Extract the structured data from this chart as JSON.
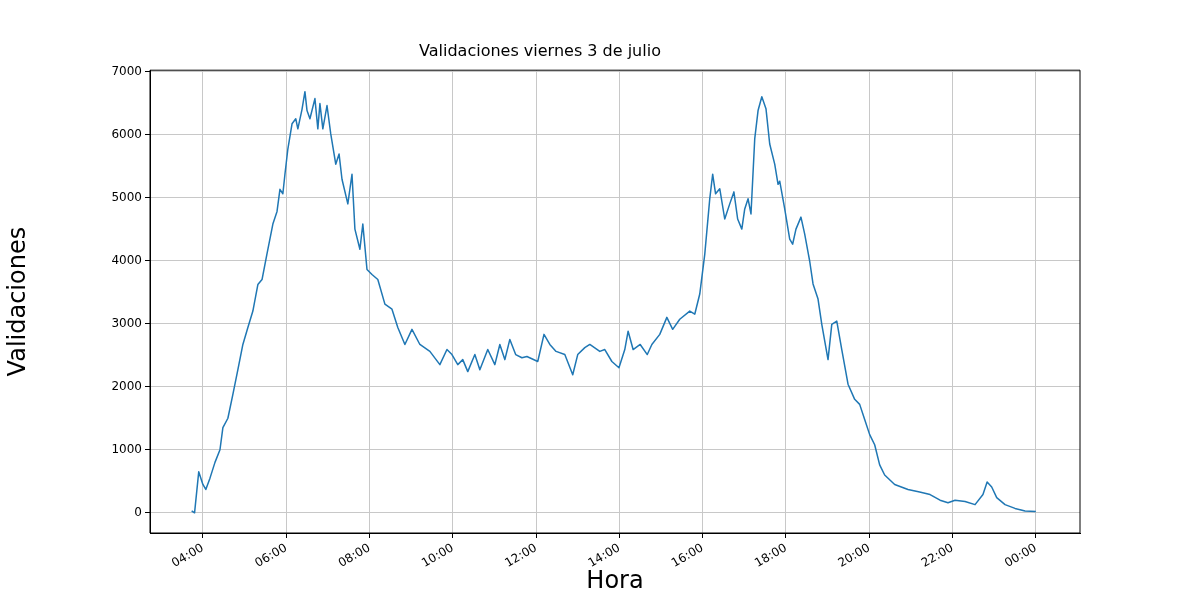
{
  "chart_data": {
    "type": "line",
    "title": "Validaciones viernes 3 de julio",
    "xlabel": "Hora",
    "ylabel": "Validaciones",
    "x": [
      3.73,
      3.8,
      3.9,
      4.0,
      4.07,
      4.17,
      4.29,
      4.41,
      4.48,
      4.6,
      4.72,
      4.84,
      4.96,
      5.08,
      5.2,
      5.32,
      5.42,
      5.56,
      5.68,
      5.78,
      5.85,
      5.92,
      5.97,
      6.04,
      6.14,
      6.23,
      6.28,
      6.38,
      6.45,
      6.5,
      6.57,
      6.69,
      6.76,
      6.81,
      6.88,
      6.98,
      7.07,
      7.19,
      7.27,
      7.34,
      7.48,
      7.58,
      7.65,
      7.77,
      7.84,
      7.94,
      8.06,
      8.2,
      8.37,
      8.54,
      8.68,
      8.85,
      9.02,
      9.21,
      9.45,
      9.69,
      9.86,
      9.98,
      10.12,
      10.24,
      10.36,
      10.53,
      10.65,
      10.84,
      11.01,
      11.13,
      11.25,
      11.37,
      11.51,
      11.66,
      11.78,
      12.04,
      12.19,
      12.33,
      12.48,
      12.69,
      12.88,
      13.0,
      13.17,
      13.29,
      13.53,
      13.65,
      13.82,
      13.99,
      14.13,
      14.21,
      14.33,
      14.5,
      14.67,
      14.78,
      14.97,
      15.14,
      15.28,
      15.45,
      15.69,
      15.81,
      15.93,
      16.05,
      16.17,
      16.24,
      16.31,
      16.41,
      16.53,
      16.65,
      16.75,
      16.84,
      16.94,
      17.01,
      17.09,
      17.16,
      17.25,
      17.33,
      17.42,
      17.52,
      17.61,
      17.73,
      17.81,
      17.85,
      17.97,
      18.09,
      18.16,
      18.24,
      18.36,
      18.45,
      18.57,
      18.65,
      18.77,
      18.86,
      19.01,
      19.1,
      19.22,
      19.34,
      19.49,
      19.65,
      19.77,
      19.89,
      20.01,
      20.13,
      20.25,
      20.37,
      20.61,
      20.93,
      21.21,
      21.46,
      21.7,
      21.89,
      22.06,
      22.3,
      22.54,
      22.73,
      22.83,
      22.94,
      23.06,
      23.26,
      23.5,
      23.74,
      24.0
    ],
    "series": [
      {
        "color": "#1f77b4",
        "values": [
          30,
          0,
          650,
          450,
          370,
          550,
          800,
          1000,
          1350,
          1500,
          1880,
          2270,
          2670,
          2940,
          3200,
          3620,
          3700,
          4180,
          4580,
          4780,
          5130,
          5060,
          5370,
          5770,
          6170,
          6250,
          6090,
          6400,
          6680,
          6380,
          6250,
          6570,
          6090,
          6490,
          6090,
          6460,
          6010,
          5530,
          5690,
          5290,
          4900,
          5370,
          4500,
          4180,
          4580,
          3860,
          3780,
          3700,
          3310,
          3230,
          2940,
          2670,
          2910,
          2670,
          2560,
          2350,
          2590,
          2510,
          2350,
          2430,
          2240,
          2510,
          2270,
          2590,
          2350,
          2670,
          2430,
          2750,
          2510,
          2460,
          2480,
          2400,
          2830,
          2670,
          2560,
          2510,
          2190,
          2510,
          2620,
          2670,
          2560,
          2590,
          2400,
          2300,
          2590,
          2880,
          2590,
          2670,
          2510,
          2670,
          2830,
          3100,
          2910,
          3070,
          3200,
          3150,
          3470,
          4100,
          4980,
          5370,
          5060,
          5140,
          4660,
          4900,
          5090,
          4660,
          4500,
          4820,
          4980,
          4740,
          5930,
          6380,
          6600,
          6410,
          5850,
          5530,
          5210,
          5260,
          4820,
          4340,
          4260,
          4500,
          4690,
          4420,
          3990,
          3630,
          3390,
          2990,
          2430,
          2990,
          3040,
          2590,
          2040,
          1800,
          1720,
          1480,
          1240,
          1080,
          760,
          600,
          450,
          370,
          330,
          290,
          200,
          160,
          200,
          180,
          130,
          290,
          490,
          410,
          240,
          130,
          70,
          30,
          20
        ]
      }
    ],
    "xlim": [
      2.73,
      25.06
    ],
    "xticks": [
      {
        "value": 4,
        "label": "04:00"
      },
      {
        "value": 6,
        "label": "06:00"
      },
      {
        "value": 8,
        "label": "08:00"
      },
      {
        "value": 10,
        "label": "10:00"
      },
      {
        "value": 12,
        "label": "12:00"
      },
      {
        "value": 14,
        "label": "14:00"
      },
      {
        "value": 16,
        "label": "16:00"
      },
      {
        "value": 18,
        "label": "18:00"
      },
      {
        "value": 20,
        "label": "20:00"
      },
      {
        "value": 22,
        "label": "22:00"
      },
      {
        "value": 24,
        "label": "00:00"
      }
    ],
    "ylim": [
      -320,
      7020
    ],
    "yticks": [
      0,
      1000,
      2000,
      3000,
      4000,
      5000,
      6000,
      7000
    ],
    "grid": true,
    "legend": false,
    "marker": "none",
    "line_style": "solid"
  }
}
